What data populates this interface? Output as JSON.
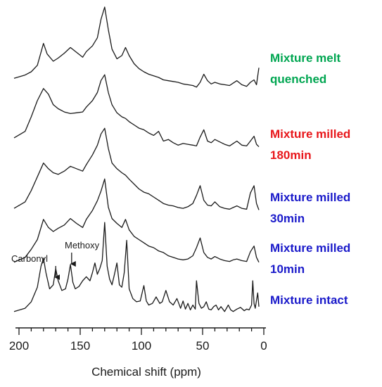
{
  "chart_data": {
    "type": "line",
    "title": "",
    "xlabel": "Chemical shift (ppm)",
    "ylabel": "",
    "xlim": [
      200,
      0
    ],
    "x_reversed": true,
    "x_ticks": [
      200,
      150,
      100,
      50,
      0
    ],
    "grid": false,
    "y_axis_shown": false,
    "annotations": [
      {
        "text": "Carbonyl",
        "x": 170,
        "arrow": true
      },
      {
        "text": "Methoxy",
        "x": 157,
        "arrow": true
      }
    ],
    "series": [
      {
        "name": "Mixture melt quenched",
        "color": "#00a651",
        "x": [
          205,
          195,
          190,
          185,
          180,
          177,
          172,
          168,
          163,
          158,
          153,
          148,
          145,
          140,
          136,
          133,
          130,
          127,
          124,
          120,
          116,
          113,
          110,
          106,
          102,
          98,
          94,
          90,
          86,
          82,
          78,
          74,
          70,
          66,
          62,
          58,
          55,
          52,
          49,
          46,
          43,
          40,
          36,
          32,
          28,
          25,
          22,
          18,
          14,
          11,
          8,
          6,
          4
        ],
        "y": [
          0.12,
          0.16,
          0.2,
          0.28,
          0.55,
          0.42,
          0.33,
          0.37,
          0.43,
          0.5,
          0.44,
          0.38,
          0.45,
          0.52,
          0.62,
          0.85,
          1.0,
          0.72,
          0.48,
          0.36,
          0.4,
          0.5,
          0.4,
          0.3,
          0.24,
          0.2,
          0.17,
          0.15,
          0.13,
          0.1,
          0.09,
          0.08,
          0.07,
          0.05,
          0.04,
          0.03,
          0.01,
          0.07,
          0.17,
          0.09,
          0.05,
          0.07,
          0.05,
          0.04,
          0.03,
          0.06,
          0.09,
          0.04,
          0.02,
          0.07,
          0.1,
          0.04,
          0.25
        ]
      },
      {
        "name": "Mixture milled 180min",
        "color": "#e8171b",
        "x": [
          205,
          195,
          190,
          185,
          180,
          176,
          172,
          168,
          163,
          158,
          153,
          148,
          145,
          140,
          136,
          133,
          130,
          127,
          124,
          120,
          116,
          113,
          110,
          106,
          102,
          98,
          94,
          90,
          86,
          82,
          78,
          74,
          70,
          66,
          62,
          58,
          55,
          52,
          49,
          46,
          43,
          40,
          36,
          32,
          28,
          25,
          22,
          18,
          14,
          11,
          8,
          6,
          4
        ],
        "y": [
          0.14,
          0.22,
          0.4,
          0.6,
          0.75,
          0.68,
          0.55,
          0.5,
          0.46,
          0.44,
          0.45,
          0.46,
          0.52,
          0.6,
          0.7,
          0.85,
          0.92,
          0.7,
          0.55,
          0.45,
          0.4,
          0.38,
          0.34,
          0.3,
          0.26,
          0.24,
          0.2,
          0.17,
          0.22,
          0.1,
          0.12,
          0.08,
          0.05,
          0.07,
          0.06,
          0.05,
          0.04,
          0.15,
          0.24,
          0.1,
          0.08,
          0.12,
          0.09,
          0.06,
          0.04,
          0.07,
          0.1,
          0.05,
          0.04,
          0.1,
          0.16,
          0.06,
          0.03
        ]
      },
      {
        "name": "Mixture milled 30min",
        "color": "#1a1aca",
        "x": [
          205,
          195,
          190,
          185,
          180,
          176,
          172,
          168,
          163,
          158,
          153,
          148,
          145,
          140,
          136,
          133,
          130,
          127,
          124,
          120,
          116,
          113,
          110,
          106,
          102,
          98,
          94,
          90,
          86,
          82,
          78,
          74,
          70,
          66,
          62,
          58,
          55,
          52,
          49,
          46,
          43,
          40,
          36,
          32,
          28,
          25,
          22,
          18,
          14,
          11,
          8,
          6,
          4
        ],
        "y": [
          0.06,
          0.14,
          0.28,
          0.45,
          0.62,
          0.55,
          0.5,
          0.48,
          0.52,
          0.58,
          0.55,
          0.52,
          0.6,
          0.72,
          0.84,
          0.98,
          1.05,
          0.8,
          0.62,
          0.55,
          0.5,
          0.47,
          0.42,
          0.36,
          0.3,
          0.26,
          0.24,
          0.2,
          0.16,
          0.12,
          0.1,
          0.09,
          0.07,
          0.06,
          0.08,
          0.12,
          0.22,
          0.34,
          0.16,
          0.1,
          0.09,
          0.14,
          0.08,
          0.06,
          0.05,
          0.07,
          0.09,
          0.06,
          0.05,
          0.25,
          0.34,
          0.12,
          0.04
        ]
      },
      {
        "name": "Mixture milled 10min",
        "color": "#1a1aca",
        "x": [
          205,
          195,
          190,
          185,
          180,
          176,
          172,
          168,
          163,
          158,
          153,
          148,
          145,
          140,
          136,
          133,
          130,
          127,
          124,
          120,
          116,
          113,
          110,
          106,
          102,
          98,
          94,
          90,
          86,
          82,
          78,
          74,
          70,
          66,
          62,
          58,
          55,
          52,
          49,
          46,
          43,
          40,
          36,
          32,
          28,
          25,
          22,
          18,
          14,
          11,
          8,
          6,
          4
        ],
        "y": [
          0.02,
          0.08,
          0.18,
          0.3,
          0.55,
          0.45,
          0.4,
          0.44,
          0.48,
          0.56,
          0.5,
          0.45,
          0.55,
          0.66,
          0.78,
          0.9,
          1.05,
          0.7,
          0.56,
          0.5,
          0.45,
          0.55,
          0.42,
          0.34,
          0.3,
          0.26,
          0.22,
          0.2,
          0.16,
          0.14,
          0.1,
          0.08,
          0.06,
          0.05,
          0.06,
          0.1,
          0.2,
          0.32,
          0.14,
          0.08,
          0.06,
          0.09,
          0.06,
          0.04,
          0.03,
          0.05,
          0.06,
          0.04,
          0.03,
          0.15,
          0.22,
          0.08,
          0.02
        ]
      },
      {
        "name": "Mixture intact",
        "color": "#1a1aca",
        "x": [
          205,
          195,
          190,
          185,
          182,
          180,
          178,
          175,
          172,
          170,
          168,
          165,
          162,
          160,
          158,
          156,
          154,
          151,
          148,
          145,
          142,
          140,
          138,
          136,
          134,
          132,
          130,
          128,
          126,
          124,
          122,
          120,
          118,
          116,
          114,
          112,
          110,
          107,
          104,
          101,
          98,
          96,
          94,
          91,
          88,
          85,
          83,
          80,
          77,
          74,
          71,
          68,
          66,
          64,
          62,
          60,
          58,
          56,
          55,
          53,
          51,
          49,
          47,
          45,
          43,
          41,
          39,
          37,
          35,
          32,
          29,
          27,
          25,
          22,
          19,
          16,
          14,
          12,
          10,
          9,
          8,
          7,
          5,
          4
        ],
        "y": [
          0.02,
          0.06,
          0.14,
          0.32,
          0.58,
          0.68,
          0.5,
          0.3,
          0.35,
          0.55,
          0.4,
          0.28,
          0.3,
          0.42,
          0.6,
          0.38,
          0.3,
          0.33,
          0.4,
          0.45,
          0.4,
          0.5,
          0.62,
          0.48,
          0.55,
          0.65,
          1.12,
          0.58,
          0.42,
          0.35,
          0.48,
          0.62,
          0.35,
          0.32,
          0.5,
          0.9,
          0.3,
          0.18,
          0.14,
          0.15,
          0.34,
          0.15,
          0.1,
          0.12,
          0.2,
          0.12,
          0.14,
          0.28,
          0.14,
          0.1,
          0.18,
          0.06,
          0.15,
          0.05,
          0.12,
          0.04,
          0.1,
          0.05,
          0.4,
          0.12,
          0.06,
          0.08,
          0.14,
          0.05,
          0.04,
          0.08,
          0.1,
          0.04,
          0.08,
          0.02,
          0.1,
          0.04,
          0.02,
          0.05,
          0.07,
          0.03,
          0.05,
          0.04,
          0.1,
          0.4,
          0.12,
          0.06,
          0.25,
          0.08
        ]
      }
    ]
  }
}
